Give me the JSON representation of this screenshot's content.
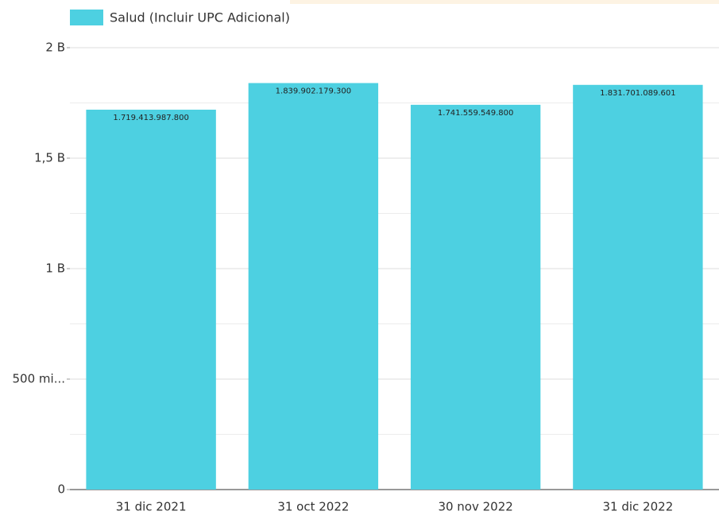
{
  "chart_data": {
    "type": "bar",
    "categories": [
      "31 dic 2021",
      "31 oct 2022",
      "30 nov 2022",
      "31 dic 2022"
    ],
    "series": [
      {
        "name": "Salud (Incluir UPC Adicional)",
        "color": "#4dd0e1",
        "values": [
          1719413987800,
          1839902179300,
          1741559549800,
          1831701089601
        ],
        "value_labels": [
          "1.719.413.987.800",
          "1.839.902.179.300",
          "1.741.559.549.800",
          "1.831.701.089.601"
        ]
      }
    ],
    "ylim": [
      0,
      2000000000000
    ],
    "yticks": [
      0,
      {
        "value": 500000000000,
        "label": "500 mi..."
      },
      {
        "value": 1000000000000,
        "label": "1 B"
      },
      {
        "value": 1500000000000,
        "label": "1,5 B"
      },
      {
        "value": 2000000000000,
        "label": "2 B"
      }
    ],
    "minor_yticks": [
      250000000000,
      750000000000,
      1250000000000,
      1750000000000
    ],
    "grid": true,
    "legend": "top-left"
  }
}
